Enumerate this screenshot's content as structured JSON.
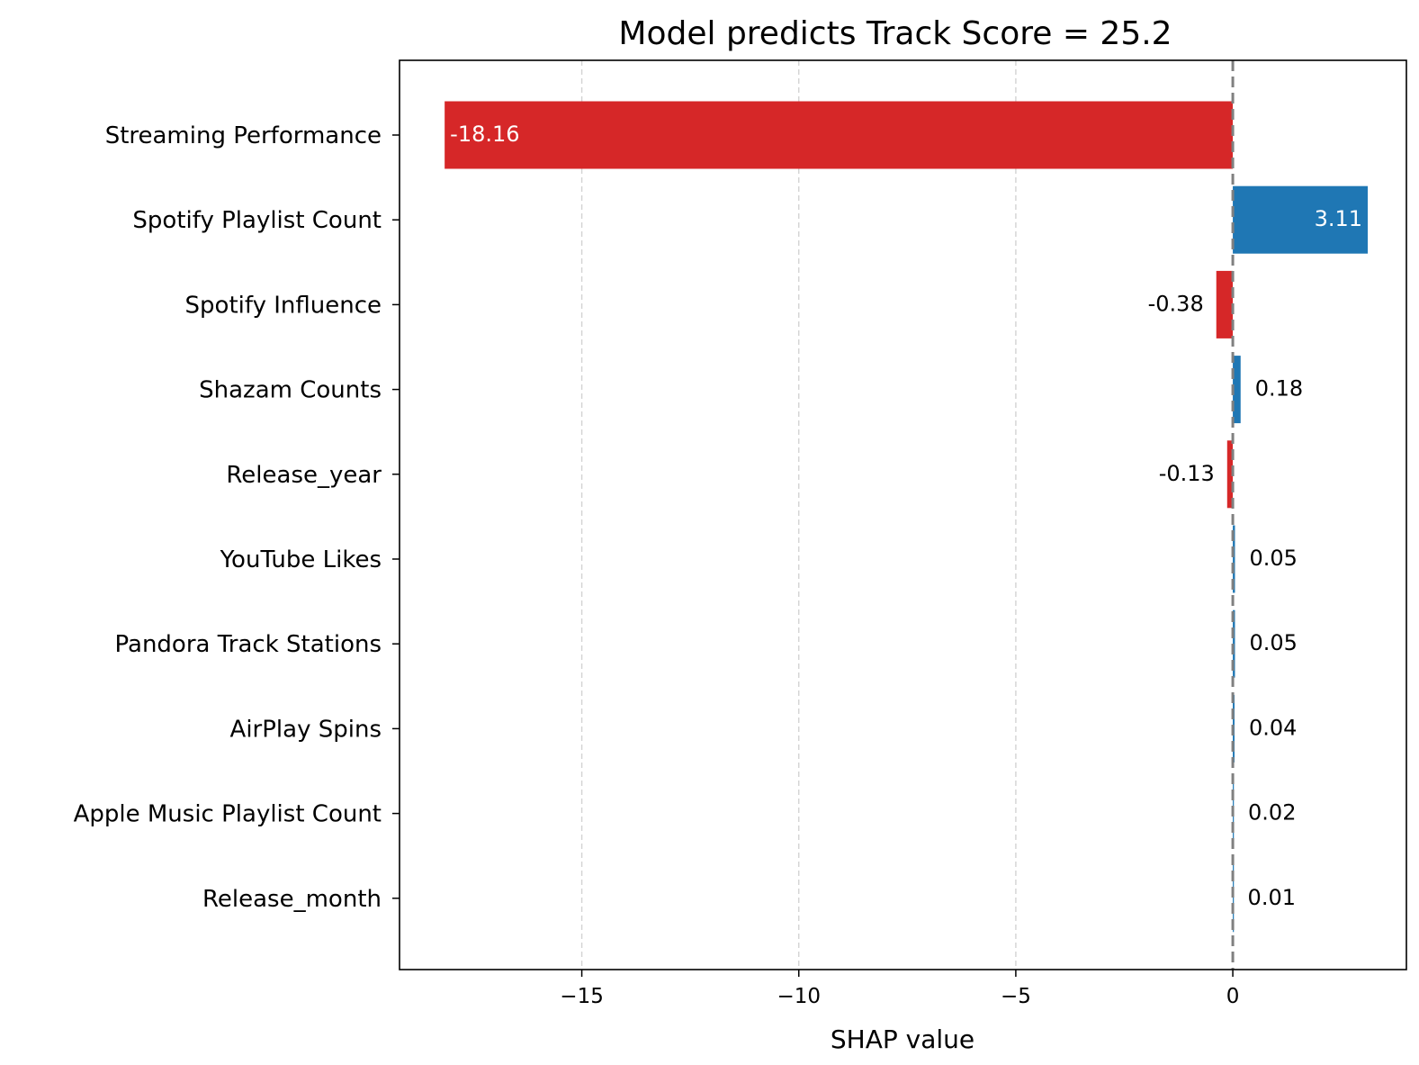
{
  "chart_data": {
    "type": "bar",
    "orientation": "horizontal",
    "title": "Model predicts Track Score = 25.2",
    "xlabel": "SHAP value",
    "ylabel": "",
    "xlim": [
      -19.2,
      4.0
    ],
    "xticks": [
      -15,
      -10,
      -5,
      0
    ],
    "xtick_labels": [
      "−15",
      "−10",
      "−5",
      "0"
    ],
    "grid": "x-dashed",
    "reference_line": 0,
    "categories": [
      "Streaming Performance",
      "Spotify Playlist Count",
      "Spotify Influence",
      "Shazam Counts",
      "Release_year",
      "YouTube Likes",
      "Pandora Track Stations",
      "AirPlay Spins",
      "Apple Music Playlist Count",
      "Release_month"
    ],
    "values": [
      -18.16,
      3.11,
      -0.38,
      0.18,
      -0.13,
      0.05,
      0.05,
      0.04,
      0.02,
      0.01
    ],
    "value_labels": [
      "-18.16",
      "3.11",
      "-0.38",
      "0.18",
      "-0.13",
      "0.05",
      "0.05",
      "0.04",
      "0.02",
      "0.01"
    ],
    "colors": {
      "positive": "#1f77b4",
      "negative": "#d62728",
      "zero_line": "#808080",
      "grid": "#d3d3d3"
    }
  }
}
